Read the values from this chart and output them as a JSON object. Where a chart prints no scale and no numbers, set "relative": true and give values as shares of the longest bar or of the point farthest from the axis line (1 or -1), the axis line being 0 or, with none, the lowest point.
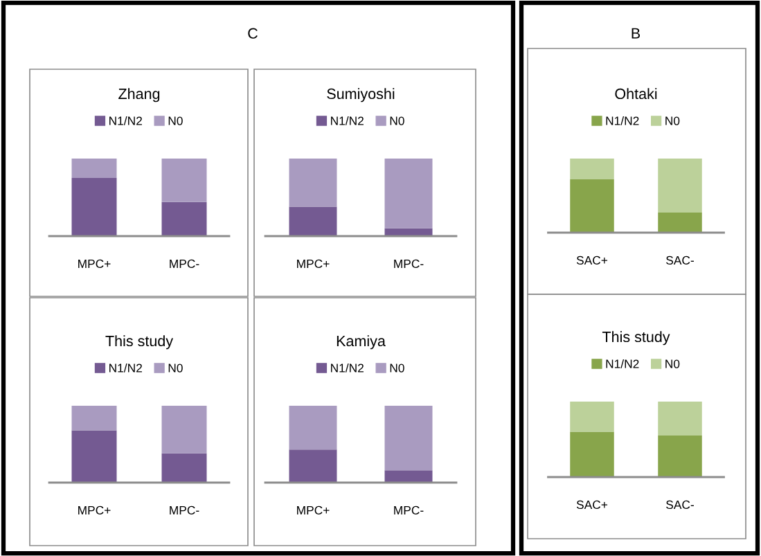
{
  "chart_data": [
    {
      "type": "bar",
      "stacked": true,
      "relative": true,
      "title": "Zhang",
      "annotations": [
        "C"
      ],
      "categories": [
        "MPC+",
        "MPC-"
      ],
      "legend": "top",
      "series": [
        {
          "name": "N1/N2",
          "color": "#745a92",
          "values": [
            0.75,
            0.44
          ]
        },
        {
          "name": "N0",
          "color": "#a99bc0",
          "values": [
            0.25,
            0.56
          ]
        }
      ]
    },
    {
      "type": "bar",
      "stacked": true,
      "relative": true,
      "title": "Sumiyoshi",
      "categories": [
        "MPC+",
        "MPC-"
      ],
      "legend": "top",
      "series": [
        {
          "name": "N1/N2",
          "color": "#745a92",
          "values": [
            0.38,
            0.1
          ]
        },
        {
          "name": "N0",
          "color": "#a99bc0",
          "values": [
            0.62,
            0.9
          ]
        }
      ]
    },
    {
      "type": "bar",
      "stacked": true,
      "relative": true,
      "title": "This study",
      "categories": [
        "MPC+",
        "MPC-"
      ],
      "legend": "top",
      "series": [
        {
          "name": "N1/N2",
          "color": "#745a92",
          "values": [
            0.68,
            0.38
          ]
        },
        {
          "name": "N0",
          "color": "#a99bc0",
          "values": [
            0.32,
            0.62
          ]
        }
      ]
    },
    {
      "type": "bar",
      "stacked": true,
      "relative": true,
      "title": "Kamiya",
      "categories": [
        "MPC+",
        "MPC-"
      ],
      "legend": "top",
      "series": [
        {
          "name": "N1/N2",
          "color": "#745a92",
          "values": [
            0.43,
            0.16
          ]
        },
        {
          "name": "N0",
          "color": "#a99bc0",
          "values": [
            0.57,
            0.84
          ]
        }
      ]
    },
    {
      "type": "bar",
      "stacked": true,
      "relative": true,
      "title": "Ohtaki",
      "annotations": [
        "B"
      ],
      "categories": [
        "SAC+",
        "SAC-"
      ],
      "legend": "top",
      "series": [
        {
          "name": "N1/N2",
          "color": "#88a54b",
          "values": [
            0.72,
            0.27
          ]
        },
        {
          "name": "N0",
          "color": "#bcd19a",
          "values": [
            0.28,
            0.73
          ]
        }
      ]
    },
    {
      "type": "bar",
      "stacked": true,
      "relative": true,
      "title": "This study",
      "categories": [
        "SAC+",
        "SAC-"
      ],
      "legend": "top",
      "series": [
        {
          "name": "N1/N2",
          "color": "#88a54b",
          "values": [
            0.6,
            0.55
          ]
        },
        {
          "name": "N0",
          "color": "#bcd19a",
          "values": [
            0.4,
            0.45
          ]
        }
      ]
    }
  ]
}
